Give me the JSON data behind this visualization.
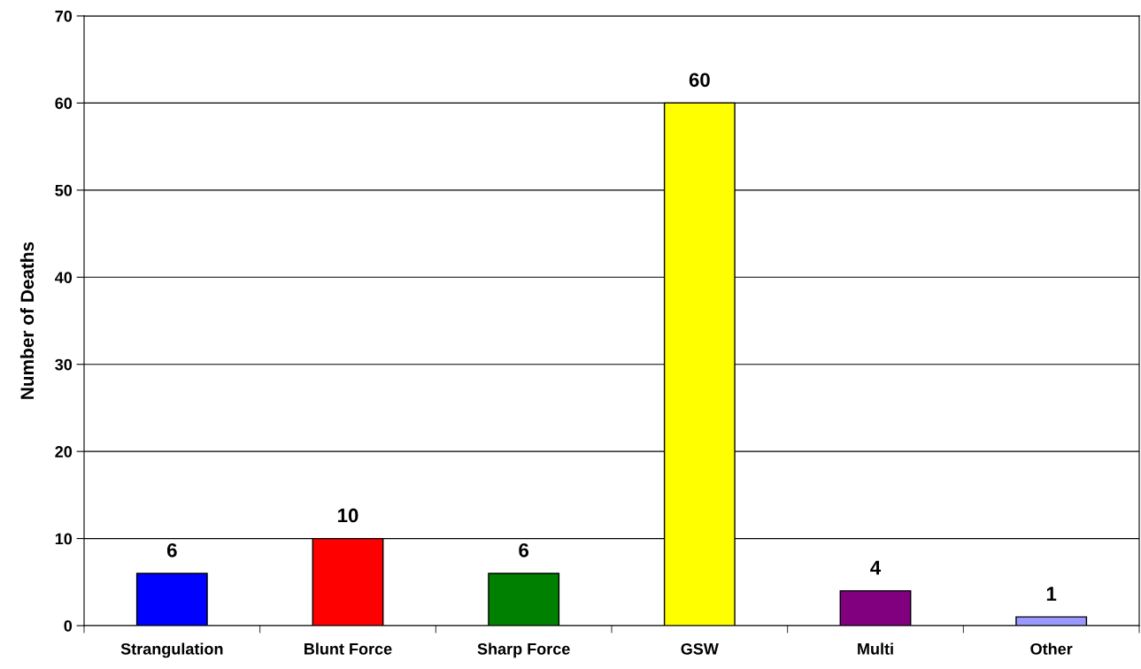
{
  "chart_data": {
    "type": "bar",
    "ylabel": "Number of Deaths",
    "categories": [
      "Strangulation",
      "Blunt Force",
      "Sharp Force",
      "GSW",
      "Multi",
      "Other"
    ],
    "values": [
      6,
      10,
      6,
      60,
      4,
      1
    ],
    "colors": [
      "#0000ff",
      "#ff0000",
      "#008000",
      "#ffff00",
      "#800080",
      "#9999ff"
    ],
    "ylim": [
      0,
      70
    ],
    "yticks": [
      0,
      10,
      20,
      30,
      40,
      50,
      60,
      70
    ],
    "grid": "y",
    "data_labels": true
  }
}
